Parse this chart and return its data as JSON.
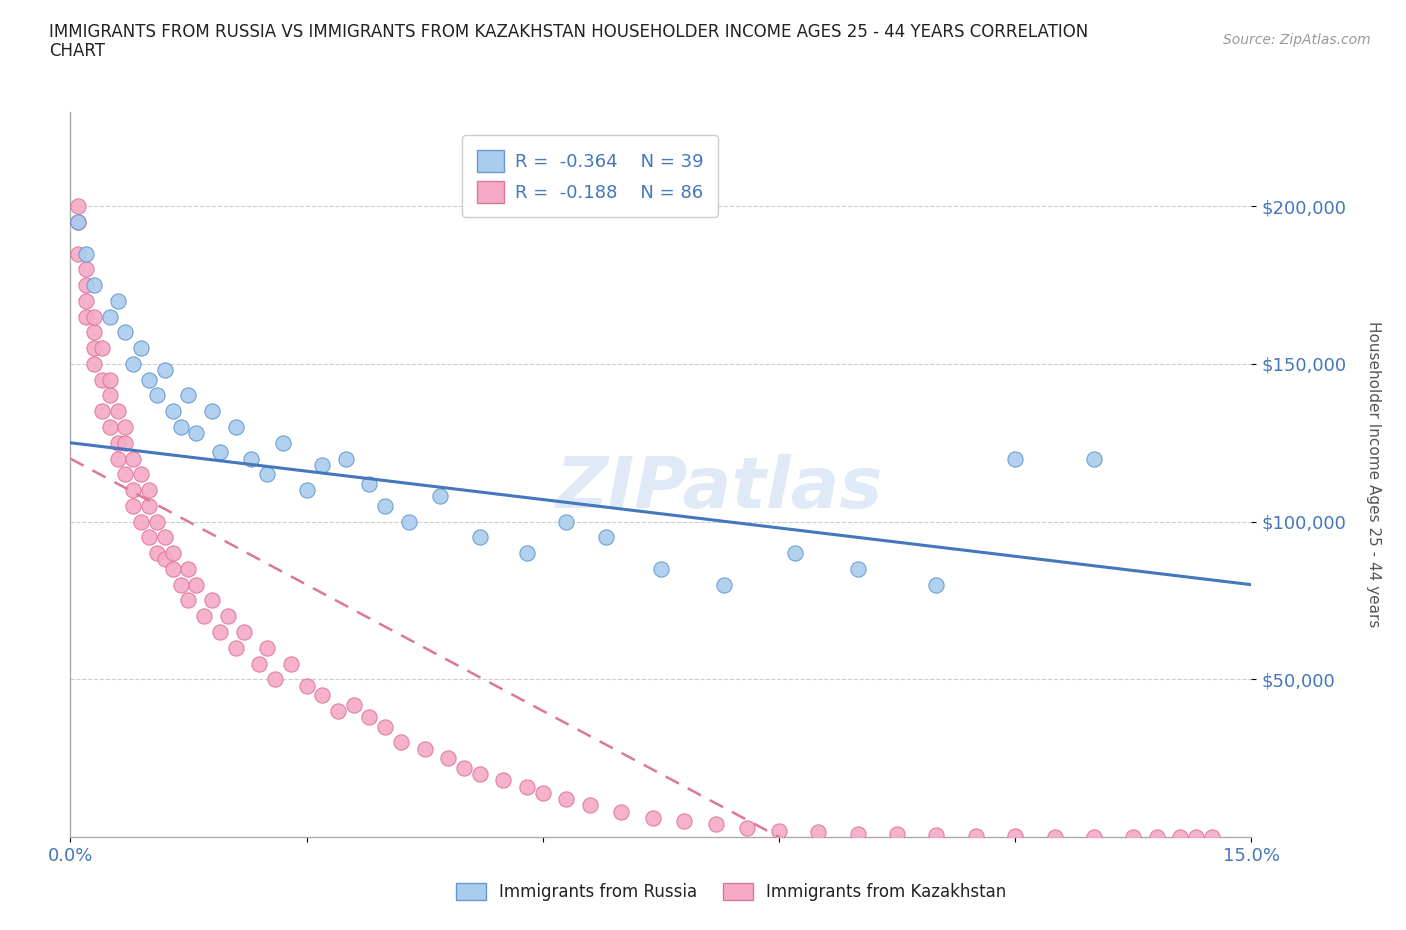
{
  "title_line1": "IMMIGRANTS FROM RUSSIA VS IMMIGRANTS FROM KAZAKHSTAN HOUSEHOLDER INCOME AGES 25 - 44 YEARS CORRELATION",
  "title_line2": "CHART",
  "source_text": "Source: ZipAtlas.com",
  "ylabel": "Householder Income Ages 25 - 44 years",
  "xlim": [
    0.0,
    0.15
  ],
  "ylim": [
    0,
    230000
  ],
  "xticks": [
    0.0,
    0.03,
    0.06,
    0.09,
    0.12,
    0.15
  ],
  "xticklabels": [
    "0.0%",
    "",
    "",
    "",
    "",
    "15.0%"
  ],
  "ytick_positions": [
    50000,
    100000,
    150000,
    200000
  ],
  "ytick_labels": [
    "$50,000",
    "$100,000",
    "$150,000",
    "$200,000"
  ],
  "russia_color": "#aaccee",
  "russia_edge": "#6699cc",
  "kazakhstan_color": "#f5aac8",
  "kazakhstan_edge": "#dd7799",
  "russia_line_color": "#4477bb",
  "kazakhstan_line_color": "#dd7799",
  "R_russia": -0.364,
  "N_russia": 39,
  "R_kazakhstan": -0.188,
  "N_kazakhstan": 86,
  "watermark": "ZIPatlas",
  "watermark_color": "#ccddeeff",
  "russia_scatter_x": [
    0.001,
    0.002,
    0.003,
    0.005,
    0.006,
    0.007,
    0.008,
    0.009,
    0.01,
    0.011,
    0.012,
    0.013,
    0.014,
    0.015,
    0.016,
    0.018,
    0.019,
    0.021,
    0.023,
    0.025,
    0.027,
    0.03,
    0.032,
    0.035,
    0.038,
    0.04,
    0.043,
    0.047,
    0.052,
    0.058,
    0.063,
    0.068,
    0.075,
    0.083,
    0.092,
    0.1,
    0.11,
    0.12,
    0.13
  ],
  "russia_scatter_y": [
    195000,
    185000,
    175000,
    165000,
    170000,
    160000,
    150000,
    155000,
    145000,
    140000,
    148000,
    135000,
    130000,
    140000,
    128000,
    135000,
    122000,
    130000,
    120000,
    115000,
    125000,
    110000,
    118000,
    120000,
    112000,
    105000,
    100000,
    108000,
    95000,
    90000,
    100000,
    95000,
    85000,
    80000,
    90000,
    85000,
    80000,
    120000,
    120000
  ],
  "kazakhstan_scatter_x": [
    0.001,
    0.001,
    0.001,
    0.002,
    0.002,
    0.002,
    0.002,
    0.003,
    0.003,
    0.003,
    0.003,
    0.004,
    0.004,
    0.004,
    0.005,
    0.005,
    0.005,
    0.006,
    0.006,
    0.006,
    0.007,
    0.007,
    0.007,
    0.008,
    0.008,
    0.008,
    0.009,
    0.009,
    0.01,
    0.01,
    0.01,
    0.011,
    0.011,
    0.012,
    0.012,
    0.013,
    0.013,
    0.014,
    0.015,
    0.015,
    0.016,
    0.017,
    0.018,
    0.019,
    0.02,
    0.021,
    0.022,
    0.024,
    0.025,
    0.026,
    0.028,
    0.03,
    0.032,
    0.034,
    0.036,
    0.038,
    0.04,
    0.042,
    0.045,
    0.048,
    0.05,
    0.052,
    0.055,
    0.058,
    0.06,
    0.063,
    0.066,
    0.07,
    0.074,
    0.078,
    0.082,
    0.086,
    0.09,
    0.095,
    0.1,
    0.105,
    0.11,
    0.115,
    0.12,
    0.125,
    0.13,
    0.135,
    0.138,
    0.141,
    0.143,
    0.145
  ],
  "kazakhstan_scatter_y": [
    200000,
    195000,
    185000,
    180000,
    175000,
    165000,
    170000,
    160000,
    155000,
    150000,
    165000,
    145000,
    155000,
    135000,
    140000,
    130000,
    145000,
    125000,
    135000,
    120000,
    130000,
    115000,
    125000,
    110000,
    120000,
    105000,
    115000,
    100000,
    110000,
    105000,
    95000,
    100000,
    90000,
    95000,
    88000,
    85000,
    90000,
    80000,
    85000,
    75000,
    80000,
    70000,
    75000,
    65000,
    70000,
    60000,
    65000,
    55000,
    60000,
    50000,
    55000,
    48000,
    45000,
    40000,
    42000,
    38000,
    35000,
    30000,
    28000,
    25000,
    22000,
    20000,
    18000,
    16000,
    14000,
    12000,
    10000,
    8000,
    6000,
    5000,
    4000,
    3000,
    2000,
    1500,
    1000,
    800,
    600,
    400,
    200,
    100,
    50,
    30,
    20,
    10,
    5,
    2
  ]
}
